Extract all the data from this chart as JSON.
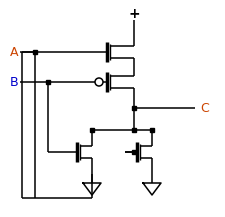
{
  "bg_color": "#ffffff",
  "line_color": "#000000",
  "label_A_color": "#cc4400",
  "label_B_color": "#0000cc",
  "label_C_color": "#cc4400",
  "label_A": "A",
  "label_B": "B",
  "label_C": "C",
  "vdd_symbol": "+",
  "figsize": [
    2.26,
    2.17
  ],
  "dpi": 100
}
